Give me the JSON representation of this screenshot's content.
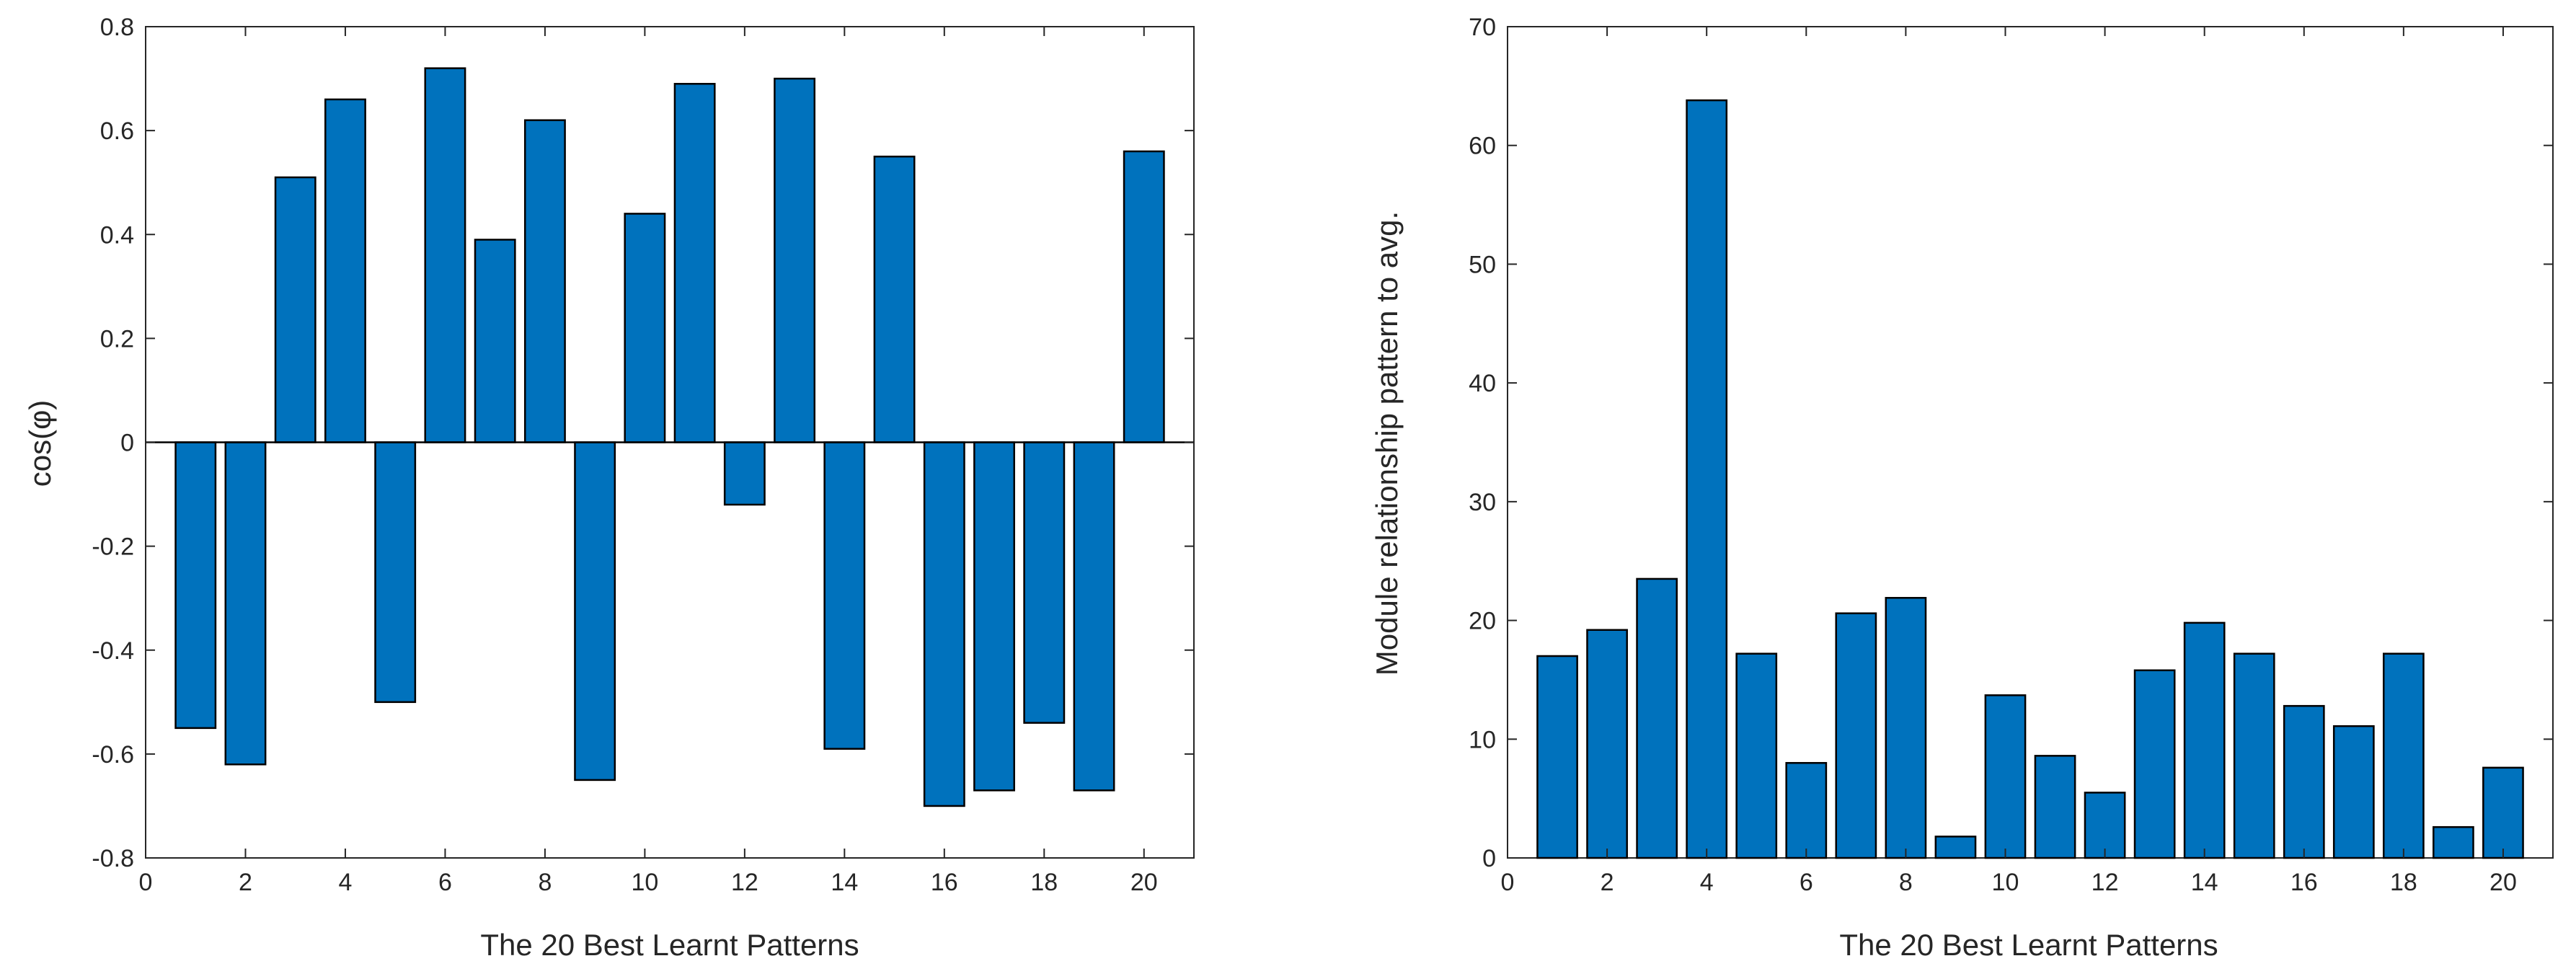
{
  "colors": {
    "bar": "#0072BD",
    "bar_edge": "#000000",
    "axis": "#262626"
  },
  "chart_data": [
    {
      "type": "bar",
      "xlabel": "The 20 Best Learnt Patterns",
      "ylabel": "cos(φ)",
      "x": [
        1,
        2,
        3,
        4,
        5,
        6,
        7,
        8,
        9,
        10,
        11,
        12,
        13,
        14,
        15,
        16,
        17,
        18,
        19,
        20
      ],
      "values": [
        -0.55,
        -0.62,
        0.51,
        0.66,
        -0.5,
        0.72,
        0.39,
        0.62,
        -0.65,
        0.44,
        0.69,
        -0.12,
        0.7,
        -0.59,
        0.55,
        -0.7,
        -0.67,
        -0.54,
        -0.67,
        0.56
      ],
      "xlim": [
        0,
        21
      ],
      "ylim": [
        -0.8,
        0.8
      ],
      "xticks": [
        0,
        2,
        4,
        6,
        8,
        10,
        12,
        14,
        16,
        18,
        20
      ],
      "yticks": [
        -0.8,
        -0.6,
        -0.4,
        -0.2,
        0,
        0.2,
        0.4,
        0.6,
        0.8
      ],
      "ytick_labels": [
        "-0.8",
        "-0.6",
        "-0.4",
        "-0.2",
        "0",
        "0.2",
        "0.4",
        "0.6",
        "0.8"
      ],
      "grid": false
    },
    {
      "type": "bar",
      "xlabel": "The 20 Best Learnt Patterns",
      "ylabel": "Module relationship pattern to avg.",
      "x": [
        1,
        2,
        3,
        4,
        5,
        6,
        7,
        8,
        9,
        10,
        11,
        12,
        13,
        14,
        15,
        16,
        17,
        18,
        19,
        20
      ],
      "values": [
        17.0,
        19.2,
        23.5,
        63.8,
        17.2,
        8.0,
        20.6,
        21.9,
        1.8,
        13.7,
        8.6,
        5.5,
        15.8,
        19.8,
        17.2,
        12.8,
        11.1,
        17.2,
        2.6,
        7.6
      ],
      "xlim": [
        0,
        21
      ],
      "ylim": [
        0,
        70
      ],
      "xticks": [
        0,
        2,
        4,
        6,
        8,
        10,
        12,
        14,
        16,
        18,
        20
      ],
      "yticks": [
        0,
        10,
        20,
        30,
        40,
        50,
        60,
        70
      ],
      "ytick_labels": [
        "0",
        "10",
        "20",
        "30",
        "40",
        "50",
        "60",
        "70"
      ],
      "grid": false
    }
  ]
}
